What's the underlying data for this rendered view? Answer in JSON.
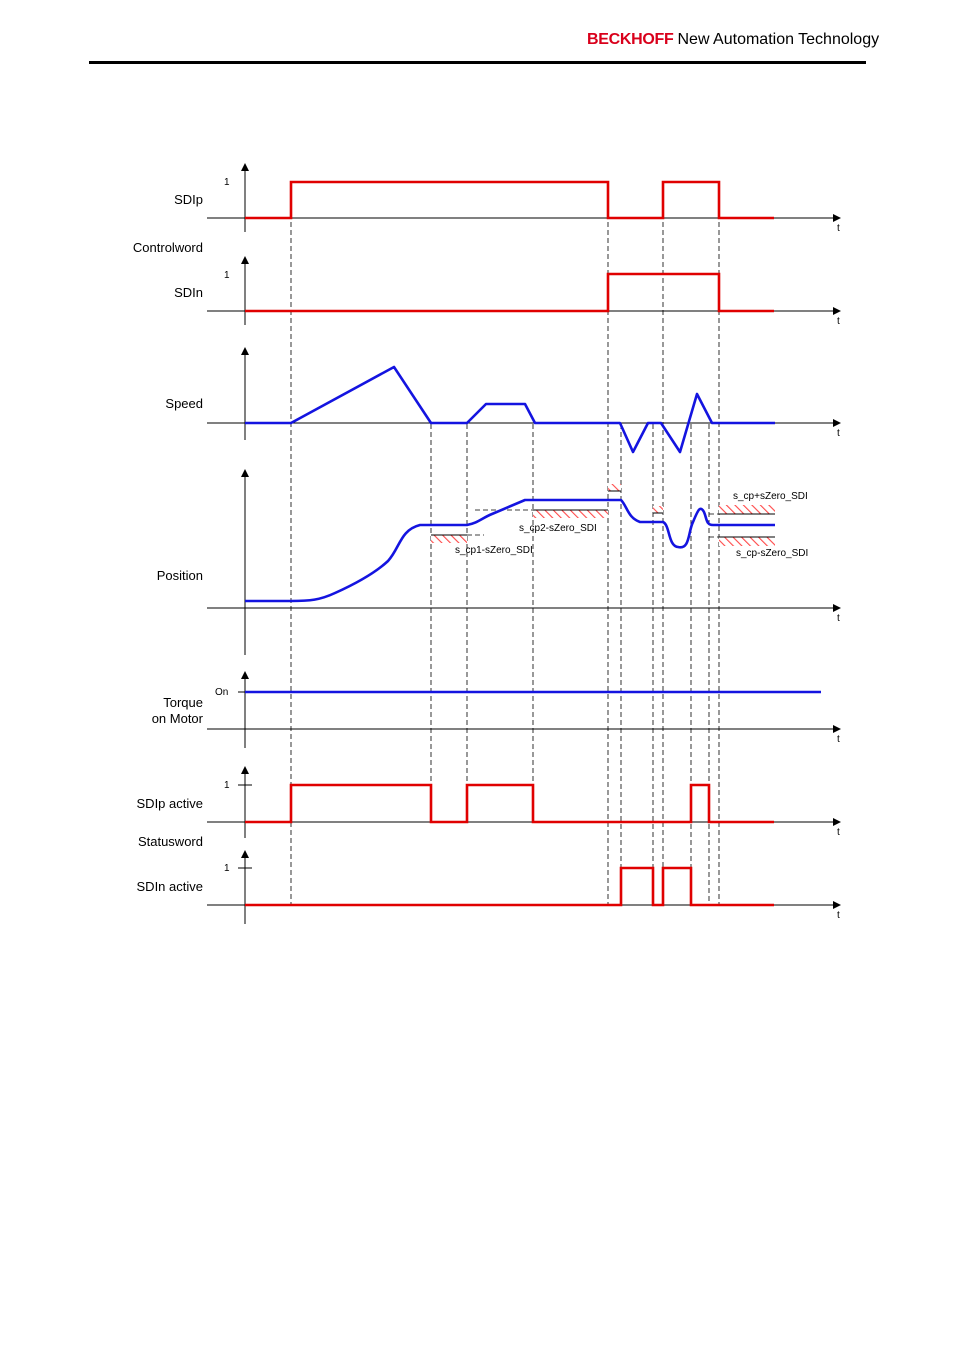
{
  "header": {
    "brand": "BECKHOFF",
    "tagline": "New Automation Technology"
  },
  "diagram": {
    "signals": {
      "sdip": "SDIp",
      "controlword": "Controlword",
      "sdin": "SDIn",
      "speed": "Speed",
      "position": "Position",
      "torque_line1": "Torque",
      "torque_line2": "on Motor",
      "sdip_active": "SDIp active",
      "statusword": "Statusword",
      "sdin_active": "SDIn active"
    },
    "level_labels": {
      "one": "1",
      "on": "On"
    },
    "time_label": "t",
    "annotations": {
      "s_cp1_minus": "s_cp1-sZero_SDI",
      "s_cp2_minus": "s_cp2-sZero_SDI",
      "s_cp_plus": "s_cp+sZero_SDI",
      "s_cp_minus": "s_cp-sZero_SDI"
    },
    "colors": {
      "digital_signal": "#e00000",
      "analog_signal": "#1414e0",
      "brand": "#d9001b"
    }
  }
}
